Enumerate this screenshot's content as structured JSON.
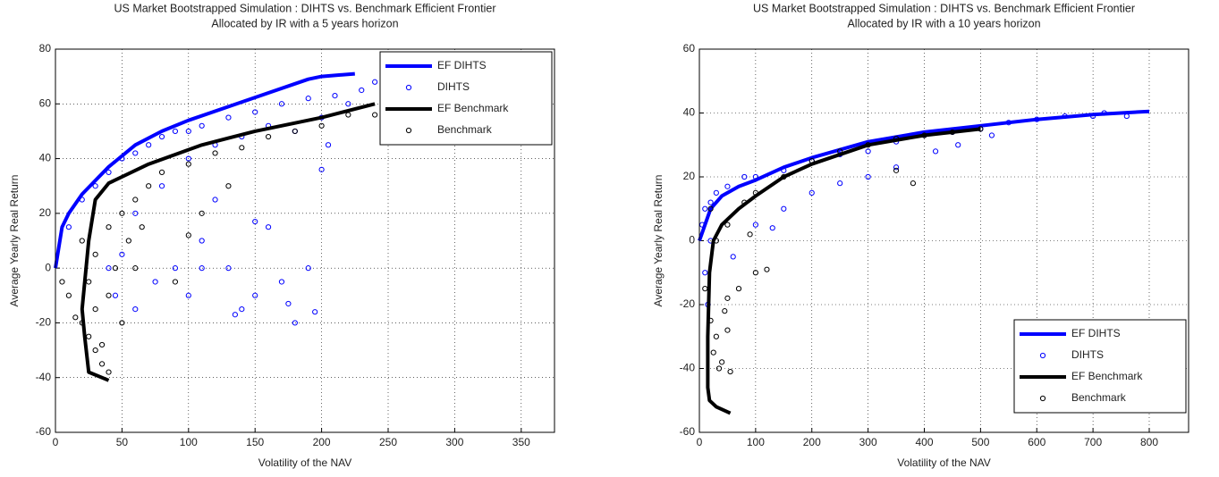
{
  "chart_data": [
    {
      "type": "scatter",
      "title": "US Market Bootstrapped Simulation  : DIHTS vs. Benchmark Efficient Frontier",
      "subtitle": "Allocated by IR with a 5 years horizon",
      "x_label": "Volatility of the NAV",
      "y_label": "Average Yearly Real Return",
      "xlim": [
        0,
        375
      ],
      "xticks": [
        0,
        50,
        100,
        150,
        200,
        250,
        300,
        350
      ],
      "ylim": [
        -60,
        80
      ],
      "yticks": [
        -60,
        -40,
        -20,
        0,
        20,
        40,
        60,
        80
      ],
      "grid": true,
      "legend": "northeast",
      "series": [
        {
          "name": "EF DIHTS",
          "color": "#0000ff",
          "style": "line",
          "x": [
            0,
            5,
            10,
            20,
            30,
            40,
            60,
            80,
            100,
            130,
            160,
            190,
            200,
            225
          ],
          "values": [
            0,
            15,
            20,
            27,
            32,
            37,
            45,
            50,
            54,
            59,
            64,
            69,
            70,
            71
          ]
        },
        {
          "name": "DIHTS",
          "color": "#0000ff",
          "style": "markers",
          "x": [
            10,
            20,
            30,
            40,
            50,
            60,
            70,
            80,
            90,
            100,
            110,
            130,
            150,
            170,
            190,
            210,
            230,
            240,
            200,
            220,
            120,
            140,
            160,
            180,
            100,
            80,
            60,
            50,
            45,
            60,
            75,
            90,
            100,
            110,
            130,
            140,
            150,
            160,
            170,
            180,
            190,
            195,
            200,
            205,
            150,
            120,
            110,
            135,
            175,
            40
          ],
          "values": [
            15,
            25,
            30,
            35,
            40,
            42,
            45,
            48,
            50,
            50,
            52,
            55,
            57,
            60,
            62,
            63,
            65,
            68,
            55,
            60,
            45,
            48,
            52,
            50,
            40,
            30,
            20,
            5,
            -10,
            -15,
            -5,
            0,
            -10,
            0,
            0,
            -15,
            -10,
            15,
            -5,
            -20,
            0,
            -16,
            36,
            45,
            17,
            25,
            10,
            -17,
            -13,
            0
          ]
        },
        {
          "name": "EF Benchmark",
          "color": "#000000",
          "style": "line",
          "x": [
            40,
            25,
            22,
            20,
            25,
            30,
            40,
            70,
            110,
            150,
            200,
            240
          ],
          "values": [
            -41,
            -38,
            -25,
            -15,
            10,
            25,
            31,
            38,
            45,
            50,
            55,
            60
          ]
        },
        {
          "name": "Benchmark",
          "color": "#000000",
          "style": "markers",
          "x": [
            5,
            10,
            15,
            20,
            25,
            30,
            35,
            40,
            30,
            40,
            50,
            45,
            30,
            40,
            50,
            60,
            70,
            80,
            100,
            120,
            140,
            160,
            180,
            200,
            220,
            240,
            35,
            25,
            55,
            65,
            90,
            100,
            110,
            130,
            60,
            20
          ],
          "values": [
            -5,
            -10,
            -18,
            -20,
            -25,
            -30,
            -35,
            -38,
            -15,
            -10,
            -20,
            0,
            5,
            15,
            20,
            25,
            30,
            35,
            38,
            42,
            44,
            48,
            50,
            52,
            56,
            56,
            -28,
            -5,
            10,
            15,
            -5,
            12,
            20,
            30,
            0,
            10
          ]
        }
      ]
    },
    {
      "type": "scatter",
      "title": "US Market Bootstrapped Simulation  : DIHTS vs. Benchmark Efficient Frontier",
      "subtitle": "Allocated by IR with a 10 years horizon",
      "x_label": "Volatility of the NAV",
      "y_label": "Average Yearly Real Return",
      "xlim": [
        0,
        870
      ],
      "xticks": [
        0,
        100,
        200,
        300,
        400,
        500,
        600,
        700,
        800
      ],
      "ylim": [
        -60,
        60
      ],
      "yticks": [
        -60,
        -40,
        -20,
        0,
        20,
        40,
        60
      ],
      "grid": true,
      "legend": "southeast",
      "series": [
        {
          "name": "EF DIHTS",
          "color": "#0000ff",
          "style": "line",
          "x": [
            0,
            10,
            20,
            40,
            70,
            100,
            150,
            200,
            300,
            400,
            500,
            600,
            700,
            800
          ],
          "values": [
            0,
            5,
            10,
            14,
            17,
            19,
            23,
            26,
            31,
            34,
            36,
            38,
            39.5,
            40.5
          ]
        },
        {
          "name": "DIHTS",
          "color": "#0000ff",
          "style": "markers",
          "x": [
            5,
            10,
            20,
            30,
            50,
            80,
            100,
            150,
            200,
            250,
            300,
            350,
            400,
            450,
            500,
            550,
            600,
            650,
            700,
            760,
            720,
            10,
            15,
            20,
            130,
            200,
            250,
            300,
            350,
            420,
            460,
            520,
            150,
            100,
            60
          ],
          "values": [
            5,
            10,
            12,
            15,
            17,
            20,
            20,
            22,
            25,
            27,
            28,
            31,
            33,
            34,
            35,
            37,
            38,
            39,
            39,
            39,
            40,
            -10,
            -20,
            0,
            4,
            15,
            18,
            20,
            23,
            28,
            30,
            33,
            10,
            5,
            -5
          ]
        },
        {
          "name": "EF Benchmark",
          "color": "#000000",
          "style": "line",
          "x": [
            55,
            30,
            18,
            15,
            15,
            18,
            25,
            40,
            70,
            100,
            150,
            200,
            300,
            400,
            500
          ],
          "values": [
            -54,
            -52,
            -50,
            -46,
            -30,
            -10,
            0,
            5,
            10,
            14,
            20,
            24,
            30,
            33,
            35
          ]
        },
        {
          "name": "Benchmark",
          "color": "#000000",
          "style": "markers",
          "x": [
            10,
            20,
            25,
            30,
            35,
            40,
            50,
            55,
            45,
            50,
            70,
            100,
            120,
            30,
            50,
            80,
            100,
            150,
            200,
            250,
            300,
            350,
            400,
            450,
            500,
            380,
            350,
            90,
            20
          ],
          "values": [
            -15,
            -25,
            -35,
            -30,
            -40,
            -38,
            -28,
            -41,
            -22,
            -18,
            -15,
            -10,
            -9,
            0,
            5,
            12,
            15,
            20,
            25,
            28,
            30,
            32,
            33,
            34,
            35,
            18,
            22,
            2,
            10
          ]
        }
      ]
    }
  ]
}
